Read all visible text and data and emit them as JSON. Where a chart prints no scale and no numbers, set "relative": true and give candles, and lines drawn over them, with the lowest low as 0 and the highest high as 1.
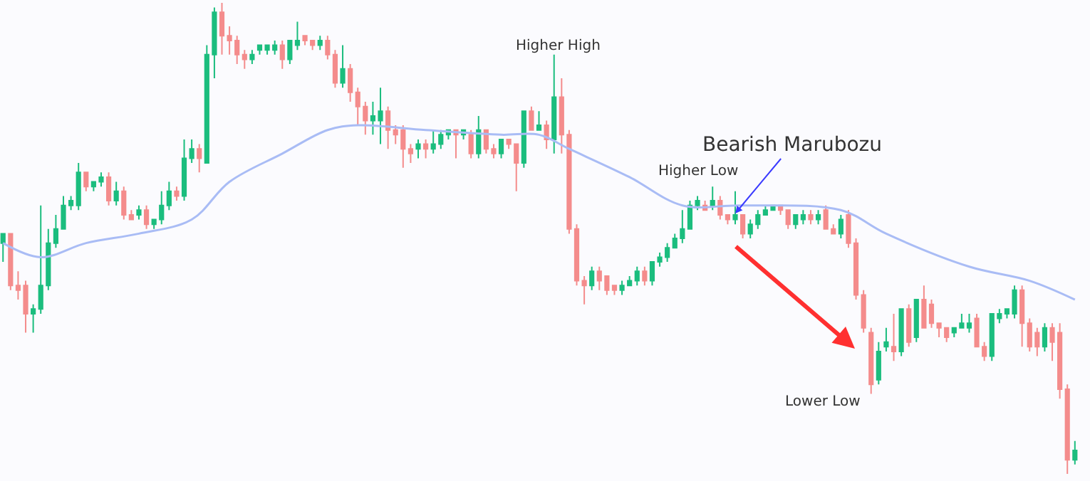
{
  "chart_data": {
    "type": "candlestick",
    "relative": true,
    "categories": [
      null,
      null,
      null,
      null,
      null,
      null,
      null,
      null,
      null,
      null,
      null,
      null,
      null,
      null,
      null,
      null,
      null,
      null,
      null,
      null,
      null,
      null,
      null,
      null,
      null,
      null,
      null,
      null,
      null,
      null,
      null,
      null,
      null,
      null,
      null,
      null,
      null,
      null,
      null,
      null,
      null,
      null,
      null,
      null,
      null,
      null,
      null,
      null,
      null,
      null,
      null,
      null,
      null,
      null,
      null,
      null,
      null,
      null,
      null,
      null,
      null,
      null,
      null,
      null,
      null,
      null,
      null,
      null,
      null,
      null,
      null,
      null,
      null,
      null,
      null,
      null,
      null,
      null,
      null,
      null,
      null,
      null,
      null,
      null,
      null,
      null,
      null,
      null,
      null,
      null,
      null,
      null,
      null,
      null,
      null,
      null,
      null,
      null,
      null,
      null,
      null,
      null,
      null,
      null,
      null,
      null,
      null,
      null,
      null,
      null,
      null,
      null,
      null,
      null,
      null,
      null,
      null,
      null,
      null,
      null,
      null,
      null,
      null,
      null,
      null,
      null,
      null,
      null,
      null,
      null,
      null,
      null,
      null,
      null,
      null,
      null,
      null,
      null,
      null,
      null,
      null,
      null,
      null
    ],
    "ohlc": [
      [
        0.49,
        0.51,
        0.45,
        0.51
      ],
      [
        0.51,
        0.51,
        0.39,
        0.4
      ],
      [
        0.4,
        0.43,
        0.37,
        0.39
      ],
      [
        0.4,
        0.41,
        0.3,
        0.34
      ],
      [
        0.34,
        0.36,
        0.3,
        0.35
      ],
      [
        0.35,
        0.57,
        0.34,
        0.4
      ],
      [
        0.4,
        0.52,
        0.39,
        0.49
      ],
      [
        0.49,
        0.55,
        0.48,
        0.52
      ],
      [
        0.52,
        0.59,
        0.52,
        0.57
      ],
      [
        0.57,
        0.59,
        0.56,
        0.58
      ],
      [
        0.57,
        0.66,
        0.56,
        0.64
      ],
      [
        0.64,
        0.64,
        0.6,
        0.61
      ],
      [
        0.61,
        0.62,
        0.6,
        0.62
      ],
      [
        0.62,
        0.64,
        0.61,
        0.63
      ],
      [
        0.63,
        0.64,
        0.57,
        0.58
      ],
      [
        0.58,
        0.62,
        0.57,
        0.6
      ],
      [
        0.6,
        0.61,
        0.54,
        0.55
      ],
      [
        0.55,
        0.56,
        0.54,
        0.54
      ],
      [
        0.55,
        0.57,
        0.54,
        0.56
      ],
      [
        0.56,
        0.57,
        0.52,
        0.53
      ],
      [
        0.53,
        0.54,
        0.52,
        0.54
      ],
      [
        0.54,
        0.6,
        0.53,
        0.57
      ],
      [
        0.57,
        0.62,
        0.56,
        0.6
      ],
      [
        0.6,
        0.61,
        0.58,
        0.59
      ],
      [
        0.59,
        0.71,
        0.58,
        0.67
      ],
      [
        0.67,
        0.71,
        0.66,
        0.69
      ],
      [
        0.69,
        0.7,
        0.64,
        0.67
      ],
      [
        0.66,
        0.91,
        0.66,
        0.89
      ],
      [
        0.89,
        0.99,
        0.84,
        0.98
      ],
      [
        0.98,
        1.0,
        0.89,
        0.93
      ],
      [
        0.93,
        0.95,
        0.89,
        0.92
      ],
      [
        0.92,
        0.93,
        0.87,
        0.89
      ],
      [
        0.89,
        0.9,
        0.86,
        0.88
      ],
      [
        0.88,
        0.9,
        0.87,
        0.89
      ],
      [
        0.9,
        0.91,
        0.89,
        0.91
      ],
      [
        0.9,
        0.91,
        0.89,
        0.91
      ],
      [
        0.9,
        0.92,
        0.89,
        0.91
      ],
      [
        0.91,
        0.92,
        0.86,
        0.88
      ],
      [
        0.88,
        0.92,
        0.87,
        0.92
      ],
      [
        0.91,
        0.96,
        0.9,
        0.92
      ],
      [
        0.93,
        0.93,
        0.91,
        0.92
      ],
      [
        0.92,
        0.92,
        0.9,
        0.91
      ],
      [
        0.91,
        0.93,
        0.9,
        0.92
      ],
      [
        0.92,
        0.93,
        0.88,
        0.89
      ],
      [
        0.89,
        0.9,
        0.82,
        0.83
      ],
      [
        0.83,
        0.91,
        0.82,
        0.86
      ],
      [
        0.86,
        0.87,
        0.79,
        0.81
      ],
      [
        0.81,
        0.82,
        0.74,
        0.78
      ],
      [
        0.78,
        0.79,
        0.72,
        0.75
      ],
      [
        0.75,
        0.79,
        0.72,
        0.76
      ],
      [
        0.75,
        0.82,
        0.7,
        0.77
      ],
      [
        0.77,
        0.78,
        0.69,
        0.73
      ],
      [
        0.73,
        0.74,
        0.7,
        0.72
      ],
      [
        0.73,
        0.74,
        0.65,
        0.69
      ],
      [
        0.69,
        0.7,
        0.66,
        0.68
      ],
      [
        0.69,
        0.71,
        0.67,
        0.7
      ],
      [
        0.7,
        0.71,
        0.67,
        0.69
      ],
      [
        0.69,
        0.73,
        0.68,
        0.7
      ],
      [
        0.7,
        0.73,
        0.69,
        0.72
      ],
      [
        0.72,
        0.73,
        0.71,
        0.73
      ],
      [
        0.73,
        0.73,
        0.67,
        0.72
      ],
      [
        0.72,
        0.73,
        0.71,
        0.73
      ],
      [
        0.72,
        0.73,
        0.67,
        0.68
      ],
      [
        0.68,
        0.76,
        0.67,
        0.73
      ],
      [
        0.73,
        0.73,
        0.68,
        0.69
      ],
      [
        0.69,
        0.7,
        0.67,
        0.68
      ],
      [
        0.68,
        0.71,
        0.67,
        0.71
      ],
      [
        0.71,
        0.71,
        0.69,
        0.7
      ],
      [
        0.7,
        0.7,
        0.6,
        0.66
      ],
      [
        0.66,
        0.77,
        0.65,
        0.77
      ],
      [
        0.77,
        0.78,
        0.73,
        0.73
      ],
      [
        0.73,
        0.77,
        0.73,
        0.74
      ],
      [
        0.74,
        0.75,
        0.69,
        0.71
      ],
      [
        0.71,
        0.89,
        0.68,
        0.8
      ],
      [
        0.8,
        0.84,
        0.68,
        0.72
      ],
      [
        0.72,
        0.73,
        0.51,
        0.52
      ],
      [
        0.52,
        0.53,
        0.4,
        0.41
      ],
      [
        0.41,
        0.42,
        0.36,
        0.4
      ],
      [
        0.4,
        0.44,
        0.39,
        0.43
      ],
      [
        0.43,
        0.44,
        0.39,
        0.41
      ],
      [
        0.42,
        0.42,
        0.38,
        0.39
      ],
      [
        0.4,
        0.4,
        0.38,
        0.39
      ],
      [
        0.39,
        0.41,
        0.38,
        0.4
      ],
      [
        0.4,
        0.42,
        0.4,
        0.41
      ],
      [
        0.41,
        0.44,
        0.4,
        0.43
      ],
      [
        0.43,
        0.44,
        0.4,
        0.41
      ],
      [
        0.41,
        0.45,
        0.4,
        0.45
      ],
      [
        0.45,
        0.47,
        0.44,
        0.46
      ],
      [
        0.46,
        0.49,
        0.45,
        0.48
      ],
      [
        0.48,
        0.51,
        0.48,
        0.5
      ],
      [
        0.5,
        0.56,
        0.49,
        0.52
      ],
      [
        0.52,
        0.58,
        0.52,
        0.57
      ],
      [
        0.57,
        0.59,
        0.56,
        0.58
      ],
      [
        0.57,
        0.58,
        0.56,
        0.56
      ],
      [
        0.57,
        0.61,
        0.56,
        0.58
      ],
      [
        0.58,
        0.59,
        0.54,
        0.55
      ],
      [
        0.55,
        0.55,
        0.53,
        0.54
      ],
      [
        0.54,
        0.6,
        0.53,
        0.55
      ],
      [
        0.55,
        0.55,
        0.5,
        0.51
      ],
      [
        0.51,
        0.54,
        0.5,
        0.53
      ],
      [
        0.53,
        0.56,
        0.52,
        0.55
      ],
      [
        0.55,
        0.57,
        0.55,
        0.56
      ],
      [
        0.56,
        0.57,
        0.56,
        0.57
      ],
      [
        0.57,
        0.57,
        0.55,
        0.56
      ],
      [
        0.56,
        0.56,
        0.52,
        0.53
      ],
      [
        0.53,
        0.55,
        0.52,
        0.55
      ],
      [
        0.54,
        0.56,
        0.53,
        0.55
      ],
      [
        0.55,
        0.56,
        0.53,
        0.54
      ],
      [
        0.54,
        0.56,
        0.53,
        0.55
      ],
      [
        0.56,
        0.57,
        0.52,
        0.52
      ],
      [
        0.52,
        0.53,
        0.51,
        0.51
      ],
      [
        0.51,
        0.55,
        0.5,
        0.54
      ],
      [
        0.55,
        0.56,
        0.48,
        0.49
      ],
      [
        0.49,
        0.5,
        0.37,
        0.38
      ],
      [
        0.38,
        0.39,
        0.3,
        0.31
      ],
      [
        0.3,
        0.31,
        0.17,
        0.19
      ],
      [
        0.2,
        0.28,
        0.19,
        0.26
      ],
      [
        0.27,
        0.31,
        0.26,
        0.28
      ],
      [
        0.27,
        0.34,
        0.24,
        0.26
      ],
      [
        0.26,
        0.35,
        0.25,
        0.35
      ],
      [
        0.35,
        0.36,
        0.27,
        0.28
      ],
      [
        0.29,
        0.37,
        0.28,
        0.37
      ],
      [
        0.37,
        0.4,
        0.31,
        0.31
      ],
      [
        0.36,
        0.37,
        0.31,
        0.32
      ],
      [
        0.32,
        0.32,
        0.29,
        0.31
      ],
      [
        0.31,
        0.31,
        0.28,
        0.29
      ],
      [
        0.3,
        0.31,
        0.29,
        0.31
      ],
      [
        0.31,
        0.34,
        0.31,
        0.32
      ],
      [
        0.31,
        0.34,
        0.3,
        0.32
      ],
      [
        0.33,
        0.34,
        0.27,
        0.27
      ],
      [
        0.27,
        0.28,
        0.24,
        0.25
      ],
      [
        0.25,
        0.34,
        0.24,
        0.34
      ],
      [
        0.33,
        0.35,
        0.32,
        0.34
      ],
      [
        0.34,
        0.35,
        0.33,
        0.35
      ],
      [
        0.34,
        0.4,
        0.33,
        0.39
      ],
      [
        0.39,
        0.4,
        0.27,
        0.32
      ],
      [
        0.32,
        0.33,
        0.26,
        0.27
      ],
      [
        0.3,
        0.31,
        0.25,
        0.27
      ],
      [
        0.27,
        0.32,
        0.26,
        0.31
      ],
      [
        0.31,
        0.32,
        0.24,
        0.28
      ],
      [
        0.3,
        0.32,
        0.16,
        0.18
      ],
      [
        0.18,
        0.19,
        0.0,
        0.03
      ],
      [
        0.03,
        0.07,
        0.02,
        0.05
      ]
    ],
    "colors": [
      "#1bbd7e",
      "#f48c8c",
      "#f48c8c",
      "#f48c8c",
      "#1bbd7e",
      "#1bbd7e",
      "#1bbd7e",
      "#1bbd7e",
      "#1bbd7e",
      "#1bbd7e",
      "#1bbd7e",
      "#f48c8c",
      "#1bbd7e",
      "#1bbd7e",
      "#f48c8c",
      "#1bbd7e",
      "#f48c8c",
      "#f48c8c",
      "#1bbd7e",
      "#f48c8c",
      "#1bbd7e",
      "#1bbd7e",
      "#1bbd7e",
      "#f48c8c",
      "#1bbd7e",
      "#1bbd7e",
      "#f48c8c",
      "#1bbd7e",
      "#1bbd7e",
      "#f48c8c",
      "#f48c8c",
      "#f48c8c",
      "#f48c8c",
      "#1bbd7e",
      "#1bbd7e",
      "#1bbd7e",
      "#1bbd7e",
      "#f48c8c",
      "#1bbd7e",
      "#1bbd7e",
      "#f48c8c",
      "#f48c8c",
      "#1bbd7e",
      "#f48c8c",
      "#f48c8c",
      "#1bbd7e",
      "#f48c8c",
      "#f48c8c",
      "#f48c8c",
      "#1bbd7e",
      "#1bbd7e",
      "#f48c8c",
      "#f48c8c",
      "#f48c8c",
      "#f48c8c",
      "#1bbd7e",
      "#f48c8c",
      "#1bbd7e",
      "#1bbd7e",
      "#1bbd7e",
      "#f48c8c",
      "#1bbd7e",
      "#f48c8c",
      "#1bbd7e",
      "#f48c8c",
      "#f48c8c",
      "#1bbd7e",
      "#f48c8c",
      "#f48c8c",
      "#1bbd7e",
      "#f48c8c",
      "#1bbd7e",
      "#f48c8c",
      "#1bbd7e",
      "#f48c8c",
      "#f48c8c",
      "#f48c8c",
      "#f48c8c",
      "#1bbd7e",
      "#f48c8c",
      "#f48c8c",
      "#f48c8c",
      "#1bbd7e",
      "#1bbd7e",
      "#1bbd7e",
      "#f48c8c",
      "#1bbd7e",
      "#1bbd7e",
      "#1bbd7e",
      "#1bbd7e",
      "#1bbd7e",
      "#1bbd7e",
      "#1bbd7e",
      "#f48c8c",
      "#1bbd7e",
      "#f48c8c",
      "#f48c8c",
      "#1bbd7e",
      "#f48c8c",
      "#1bbd7e",
      "#1bbd7e",
      "#1bbd7e",
      "#1bbd7e",
      "#f48c8c",
      "#f48c8c",
      "#1bbd7e",
      "#1bbd7e",
      "#f48c8c",
      "#1bbd7e",
      "#f48c8c",
      "#f48c8c",
      "#1bbd7e",
      "#f48c8c",
      "#f48c8c",
      "#f48c8c",
      "#f48c8c",
      "#1bbd7e",
      "#1bbd7e",
      "#f48c8c",
      "#1bbd7e",
      "#f48c8c",
      "#1bbd7e",
      "#f48c8c",
      "#f48c8c",
      "#f48c8c",
      "#f48c8c",
      "#1bbd7e",
      "#1bbd7e",
      "#1bbd7e",
      "#f48c8c",
      "#f48c8c",
      "#1bbd7e",
      "#1bbd7e",
      "#1bbd7e",
      "#1bbd7e",
      "#f48c8c",
      "#f48c8c",
      "#f48c8c",
      "#1bbd7e",
      "#f48c8c",
      "#f48c8c",
      "#f48c8c",
      "#1bbd7e"
    ],
    "series": [
      {
        "type": "line",
        "color": "#a9bcf5",
        "values": [
          0.49,
          null,
          null,
          null,
          null,
          0.46,
          null,
          null,
          null,
          null,
          null,
          0.49,
          null,
          null,
          null,
          null,
          null,
          null,
          0.51,
          null,
          null,
          null,
          null,
          null,
          null,
          0.54,
          null,
          null,
          null,
          null,
          0.62,
          null,
          null,
          null,
          null,
          null,
          null,
          0.68,
          null,
          null,
          null,
          null,
          null,
          0.73,
          null,
          null,
          null,
          0.74,
          null,
          null,
          null,
          null,
          null,
          null,
          null,
          null,
          0.73,
          null,
          null,
          null,
          null,
          null,
          null,
          null,
          null,
          null,
          0.72,
          null,
          null,
          null,
          null,
          0.72,
          null,
          null,
          null,
          0.69,
          null,
          null,
          null,
          null,
          null,
          null,
          null,
          0.63,
          null,
          null,
          null,
          null,
          null,
          null,
          0.57,
          null,
          null,
          null,
          null,
          null,
          null,
          null,
          0.57,
          null,
          null,
          null,
          null,
          null,
          null,
          null,
          null,
          null,
          null,
          null,
          null,
          0.56,
          null,
          null,
          null,
          null,
          null,
          0.51,
          null,
          null,
          null,
          null,
          null,
          null,
          null,
          null,
          null,
          null,
          0.44,
          null,
          null,
          null,
          null,
          null,
          null,
          null,
          0.41,
          null,
          null,
          null,
          null,
          null,
          0.37
        ]
      }
    ],
    "annotations": [
      "Higher High",
      "Higher Low",
      "Bearish Marubozu",
      "Lower Low"
    ]
  }
}
